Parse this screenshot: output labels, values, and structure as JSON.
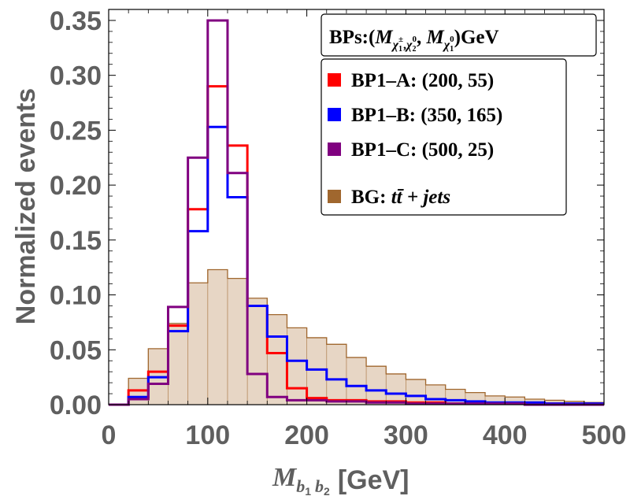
{
  "chart_data": {
    "type": "histogram",
    "x_bin_edges": [
      0,
      20,
      40,
      60,
      80,
      100,
      120,
      140,
      160,
      180,
      200,
      220,
      240,
      260,
      280,
      300,
      320,
      340,
      360,
      380,
      400,
      420,
      440,
      460,
      480,
      500
    ],
    "xlim": [
      0,
      500
    ],
    "ylim": [
      0,
      0.36
    ],
    "x_ticks": [
      0,
      100,
      200,
      300,
      400,
      500
    ],
    "x_tick_labels": [
      "0",
      "100",
      "200",
      "300",
      "400",
      "500"
    ],
    "y_ticks": [
      0,
      0.05,
      0.1,
      0.15,
      0.2,
      0.25,
      0.3,
      0.35
    ],
    "y_tick_labels": [
      "0.00",
      "0.05",
      "0.10",
      "0.15",
      "0.20",
      "0.25",
      "0.30",
      "0.35"
    ],
    "ylabel": "Normalized events",
    "xlabel": {
      "symbol": "M",
      "sub1": "b",
      "sub1_index": "1",
      "sub2": "b",
      "sub2_index": "2",
      "unit": "[GeV]"
    },
    "legend_header": {
      "prefix": "BPs:(",
      "m": "M",
      "chi": "χ",
      "sub_a": "1",
      "sup_a": "±",
      "sep": ",",
      "chi2": "χ",
      "sub_b": "2",
      "sup_b": "0",
      "comma": ", ",
      "sub_c": "1",
      "sup_c": "0",
      "suffix": ")GeV"
    },
    "series": [
      {
        "name": "BP1-A",
        "legend": "BP1–A: (200, 55)",
        "color": "#ff0000",
        "filled": false,
        "values": [
          0.0,
          0.013,
          0.03,
          0.072,
          0.178,
          0.29,
          0.236,
          0.09,
          0.047,
          0.015,
          0.006,
          0.004,
          0.004,
          0.003,
          0.003,
          0.002,
          0.002,
          0.001,
          0.001,
          0.001,
          0.001,
          0.001,
          0.001,
          0.0,
          0.0
        ]
      },
      {
        "name": "BP1-B",
        "legend": "BP1–B: (350, 165)",
        "color": "#0000ff",
        "filled": false,
        "values": [
          0.0,
          0.007,
          0.025,
          0.067,
          0.158,
          0.253,
          0.189,
          0.09,
          0.062,
          0.04,
          0.032,
          0.023,
          0.017,
          0.013,
          0.01,
          0.008,
          0.005,
          0.004,
          0.003,
          0.002,
          0.002,
          0.002,
          0.001,
          0.001,
          0.001
        ]
      },
      {
        "name": "BP1-C",
        "legend": "BP1–C: (500, 25)",
        "color": "#800080",
        "filled": false,
        "values": [
          0.0,
          0.005,
          0.019,
          0.089,
          0.225,
          0.35,
          0.211,
          0.028,
          0.007,
          0.004,
          0.004,
          0.003,
          0.003,
          0.002,
          0.002,
          0.001,
          0.001,
          0.001,
          0.001,
          0.001,
          0.001,
          0.0,
          0.0,
          0.0,
          0.0
        ]
      },
      {
        "name": "BG",
        "legend_prefix": "BG: ",
        "legend_math": "tt̄ + jets",
        "color": "#a0672e",
        "fill_color": "#e7d6c5",
        "filled": true,
        "values": [
          0.0,
          0.024,
          0.051,
          0.074,
          0.111,
          0.123,
          0.115,
          0.097,
          0.082,
          0.07,
          0.061,
          0.055,
          0.043,
          0.035,
          0.028,
          0.023,
          0.018,
          0.014,
          0.011,
          0.008,
          0.007,
          0.005,
          0.004,
          0.003,
          0.002
        ]
      }
    ]
  }
}
